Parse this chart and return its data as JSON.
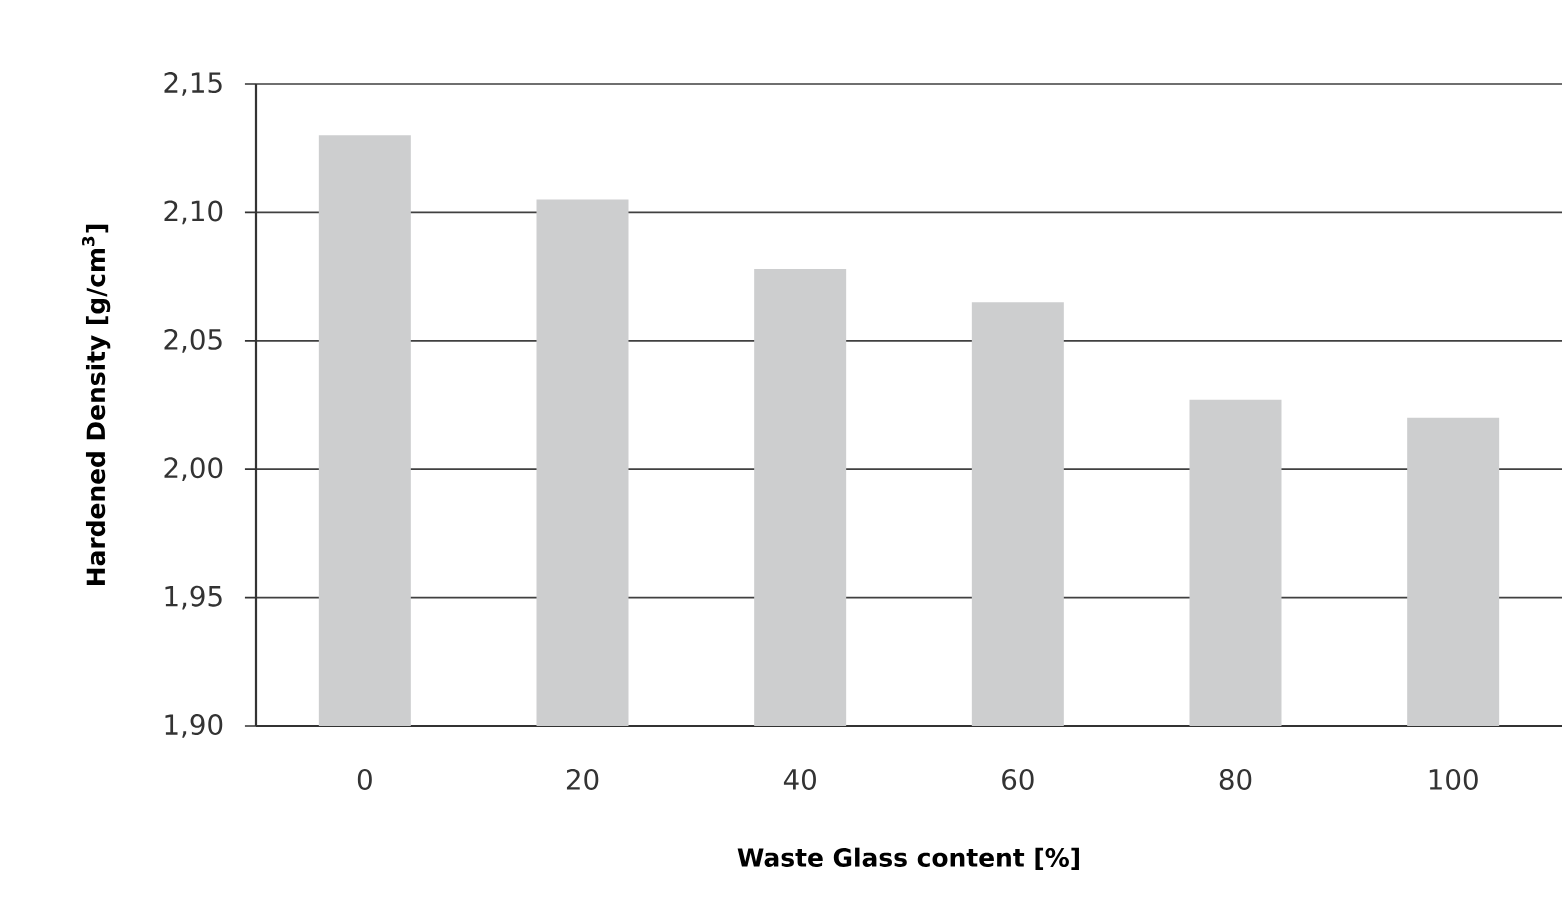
{
  "chart_data": {
    "type": "bar",
    "xlabel": "Waste Glass content [%]",
    "ylabel": "Hardened Density [g/cm$^{3}$]",
    "categories": [
      "0",
      "20",
      "40",
      "60",
      "80",
      "100"
    ],
    "values": [
      2.13,
      2.105,
      2.078,
      2.065,
      2.027,
      2.02
    ],
    "color": "#cdcecf",
    "ylim": [
      1.9,
      2.15
    ],
    "yticks": [
      {
        "value": 1.9,
        "label": "1,90"
      },
      {
        "value": 1.95,
        "label": "1,95"
      },
      {
        "value": 2.0,
        "label": "2,00"
      },
      {
        "value": 2.05,
        "label": "2,05"
      },
      {
        "value": 2.1,
        "label": "2,10"
      },
      {
        "value": 2.15,
        "label": "2,15"
      }
    ],
    "grid": "y"
  }
}
